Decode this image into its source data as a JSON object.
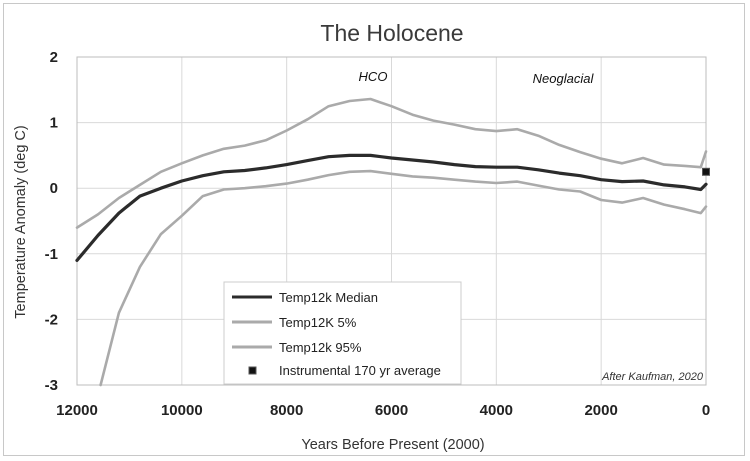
{
  "chart_data": {
    "type": "line",
    "title": "The Holocene",
    "xlabel": "Years Before Present (2000)",
    "ylabel": "Temperature Anomaly (deg C)",
    "xlim": [
      12000,
      0
    ],
    "ylim": [
      -3,
      2
    ],
    "x_ticks": [
      "12000",
      "10000",
      "8000",
      "6000",
      "4000",
      "2000",
      "0"
    ],
    "y_ticks": [
      "2",
      "1",
      "0",
      "-1",
      "-2",
      "-3"
    ],
    "grid": true,
    "annotations": {
      "hco": "HCO",
      "neoglacial": "Neoglacial",
      "credit": "After Kaufman, 2020"
    },
    "legend": {
      "position": "bottom-center"
    },
    "colors": {
      "median": "#2b2b2b",
      "bands": "#aaaaaa",
      "marker": "#111111",
      "grid": "#d9d9d9"
    },
    "series": [
      {
        "name": "Temp12k Median",
        "x": [
          12000,
          11600,
          11200,
          10800,
          10400,
          10000,
          9600,
          9200,
          8800,
          8400,
          8000,
          7600,
          7200,
          6800,
          6400,
          6000,
          5600,
          5200,
          4800,
          4400,
          4000,
          3600,
          3200,
          2800,
          2400,
          2000,
          1600,
          1200,
          800,
          400,
          100,
          0
        ],
        "y": [
          -1.1,
          -0.72,
          -0.38,
          -0.12,
          0.0,
          0.11,
          0.19,
          0.25,
          0.27,
          0.31,
          0.36,
          0.42,
          0.48,
          0.5,
          0.5,
          0.46,
          0.43,
          0.4,
          0.36,
          0.33,
          0.32,
          0.32,
          0.28,
          0.23,
          0.19,
          0.13,
          0.1,
          0.11,
          0.05,
          0.02,
          -0.02,
          0.06
        ]
      },
      {
        "name": "Temp12K 5%",
        "x": [
          12000,
          11600,
          11200,
          10800,
          10400,
          10000,
          9600,
          9200,
          8800,
          8400,
          8000,
          7600,
          7200,
          6800,
          6400,
          6000,
          5600,
          5200,
          4800,
          4400,
          4000,
          3600,
          3200,
          2800,
          2400,
          2000,
          1600,
          1200,
          800,
          400,
          100,
          0
        ],
        "y": [
          -0.6,
          -0.4,
          -0.15,
          0.05,
          0.25,
          0.38,
          0.5,
          0.6,
          0.65,
          0.73,
          0.88,
          1.05,
          1.25,
          1.33,
          1.36,
          1.25,
          1.12,
          1.03,
          0.97,
          0.9,
          0.87,
          0.9,
          0.8,
          0.66,
          0.55,
          0.45,
          0.38,
          0.46,
          0.36,
          0.34,
          0.32,
          0.56
        ]
      },
      {
        "name": "Temp12k 95%",
        "x": [
          11550,
          11200,
          10800,
          10400,
          10000,
          9600,
          9200,
          8800,
          8400,
          8000,
          7600,
          7200,
          6800,
          6400,
          6000,
          5600,
          5200,
          4800,
          4400,
          4000,
          3600,
          3200,
          2800,
          2400,
          2000,
          1600,
          1200,
          800,
          400,
          100,
          0
        ],
        "y": [
          -3.0,
          -1.9,
          -1.2,
          -0.7,
          -0.42,
          -0.12,
          -0.02,
          0.0,
          0.03,
          0.07,
          0.13,
          0.2,
          0.25,
          0.26,
          0.22,
          0.18,
          0.16,
          0.13,
          0.1,
          0.08,
          0.1,
          0.04,
          -0.02,
          -0.05,
          -0.18,
          -0.22,
          -0.15,
          -0.25,
          -0.32,
          -0.38,
          -0.28
        ]
      },
      {
        "name": "Instrumental 170 yr average",
        "x": [
          0
        ],
        "y": [
          0.25
        ]
      }
    ]
  }
}
